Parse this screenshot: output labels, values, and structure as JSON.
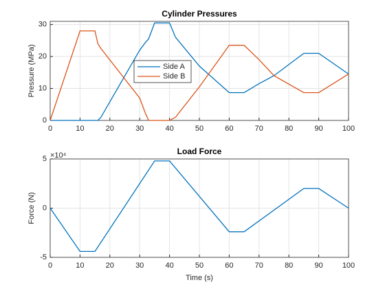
{
  "chart_data": [
    {
      "type": "line",
      "title": "Cylinder Pressures",
      "xlabel": null,
      "ylabel": "Pressure (MPa)",
      "x": [
        0,
        10,
        15,
        16,
        17,
        30,
        32,
        33,
        35,
        40,
        42,
        50,
        60,
        65,
        70,
        75,
        85,
        90,
        100
      ],
      "series": [
        {
          "name": "Side A",
          "color": "#0072BD",
          "values": [
            0,
            0,
            0,
            0,
            1,
            22,
            24.5,
            25.5,
            30.5,
            30.5,
            26,
            17,
            8.7,
            8.7,
            11.5,
            14,
            21,
            21,
            14.5
          ]
        },
        {
          "name": "Side B",
          "color": "#D95319",
          "values": [
            0,
            28,
            28,
            24,
            22.5,
            7,
            2,
            0,
            0,
            0,
            1,
            10.5,
            23.5,
            23.5,
            19,
            14,
            8.7,
            8.7,
            14.5
          ]
        }
      ],
      "xlim": [
        0,
        100
      ],
      "xticks": [
        0,
        10,
        20,
        30,
        40,
        50,
        60,
        70,
        80,
        90,
        100
      ],
      "ylim": [
        0,
        31
      ],
      "yticks": [
        0,
        10,
        20,
        30
      ],
      "grid": true,
      "legend": "center"
    },
    {
      "type": "line",
      "title": "Load Force",
      "xlabel": "Time (s)",
      "ylabel": "Force (N)",
      "y_multiplier": "×10⁴",
      "x": [
        0,
        10,
        15,
        35,
        40,
        60,
        65,
        85,
        90,
        100
      ],
      "series": [
        {
          "name": null,
          "color": "#0072BD",
          "values": [
            0,
            -44000,
            -44000,
            48000,
            48000,
            -24000,
            -24000,
            20000,
            20000,
            0
          ]
        }
      ],
      "xlim": [
        0,
        100
      ],
      "xticks": [
        0,
        10,
        20,
        30,
        40,
        50,
        60,
        70,
        80,
        90,
        100
      ],
      "ylim": [
        -50000,
        50000
      ],
      "yticks": [
        {
          "value": -50000,
          "label": "-5"
        },
        0,
        {
          "value": 50000,
          "label": "5"
        }
      ],
      "grid": true
    }
  ]
}
